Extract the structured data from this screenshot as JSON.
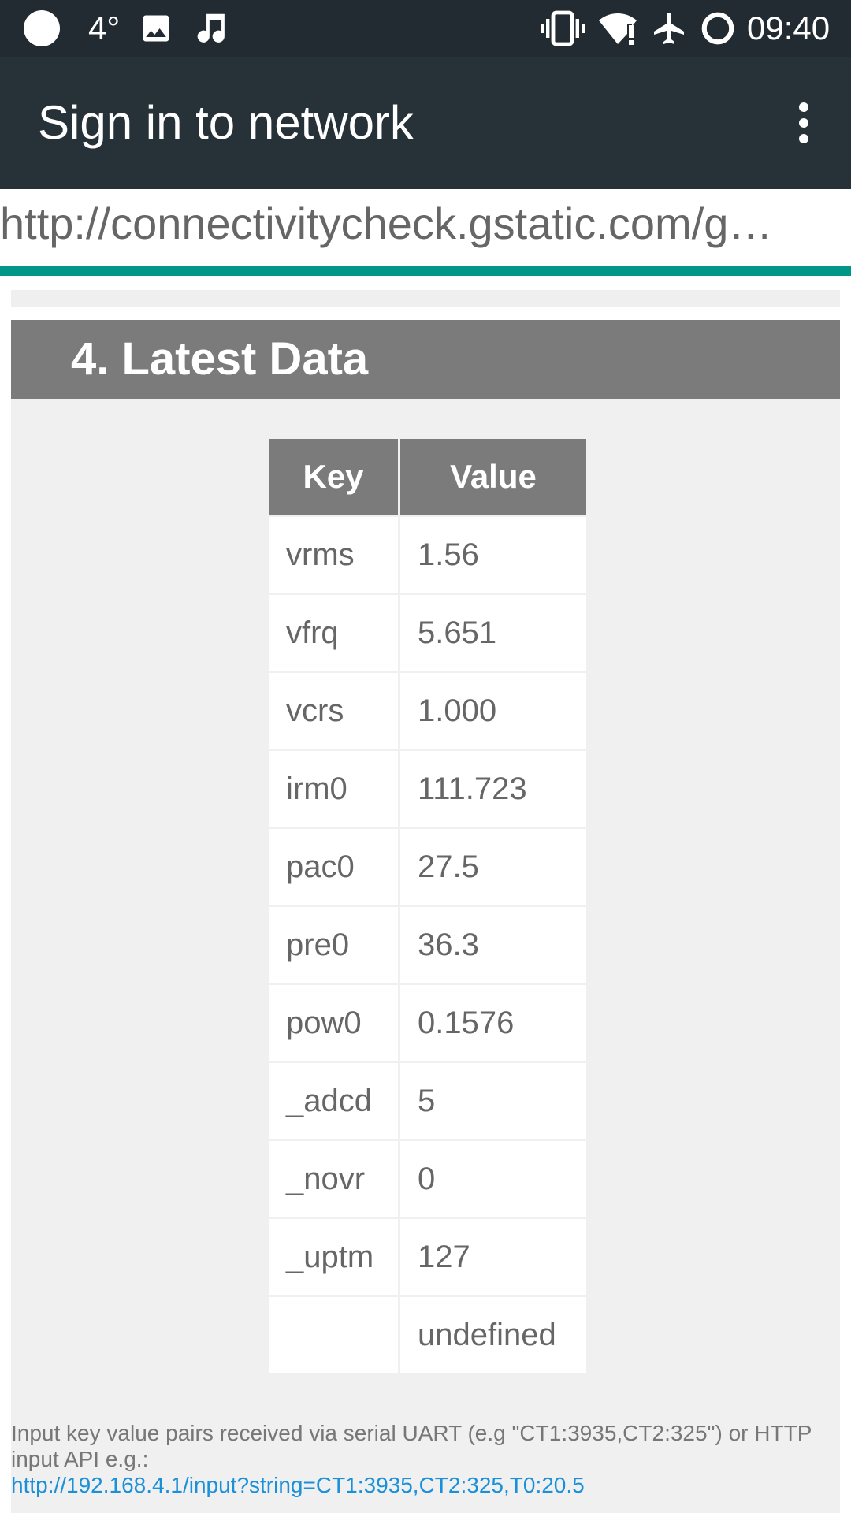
{
  "status_bar": {
    "temperature": "4°",
    "time": "09:40",
    "icons": [
      "circle-icon",
      "image-icon",
      "music-icon",
      "vibrate-icon",
      "wifi-alert-icon",
      "airplane-icon",
      "sync-ring-icon"
    ]
  },
  "app_bar": {
    "title": "Sign in to network"
  },
  "url_bar": {
    "url": "http://connectivitycheck.gstatic.com/g…",
    "load_progress": 1.0,
    "progress_color": "#009688"
  },
  "section": {
    "title": "4. Latest Data",
    "table": {
      "headers": [
        "Key",
        "Value"
      ],
      "rows": [
        {
          "key": "vrms",
          "value": "1.56"
        },
        {
          "key": "vfrq",
          "value": "5.651"
        },
        {
          "key": "vcrs",
          "value": "1.000"
        },
        {
          "key": "irm0",
          "value": "111.723"
        },
        {
          "key": "pac0",
          "value": "27.5"
        },
        {
          "key": "pre0",
          "value": "36.3"
        },
        {
          "key": "pow0",
          "value": "0.1576"
        },
        {
          "key": "_adcd",
          "value": "5"
        },
        {
          "key": "_novr",
          "value": "0"
        },
        {
          "key": "_uptm",
          "value": "127"
        },
        {
          "key": "",
          "value": "undefined"
        }
      ]
    },
    "footer_text": "Input key value pairs received via serial UART (e.g \"CT1:3935,CT2:325\") or HTTP input API e.g.:",
    "footer_link": "http://192.168.4.1/input?string=CT1:3935,CT2:325,T0:20.5"
  },
  "colors": {
    "status_bar": "#222b31",
    "app_bar": "#263238",
    "header_bg": "#7b7b7b",
    "link": "#1a90d9"
  }
}
